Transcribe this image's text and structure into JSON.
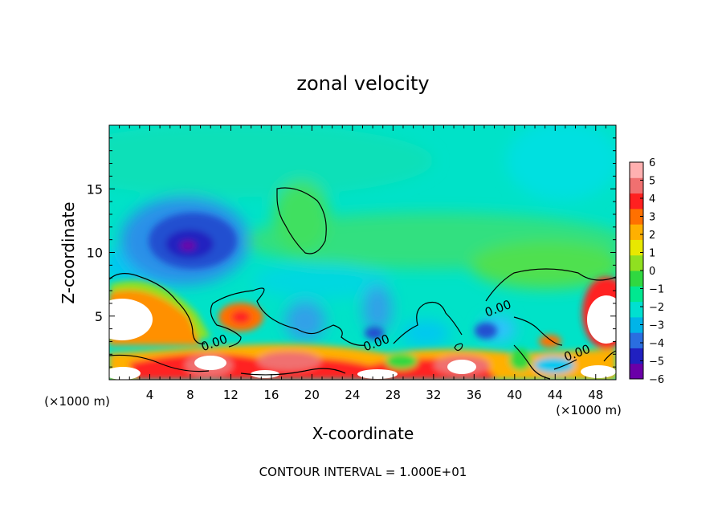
{
  "chart_data": {
    "type": "heatmap",
    "title": "zonal velocity",
    "xlabel": "X-coordinate",
    "ylabel": "Z-coordinate",
    "x_unit": "(×1000 m)",
    "xlim": [
      0,
      50
    ],
    "ylim": [
      0,
      20
    ],
    "x_ticks": [
      4,
      8,
      12,
      16,
      20,
      24,
      28,
      32,
      36,
      40,
      44,
      48
    ],
    "y_ticks": [
      5,
      10,
      15
    ],
    "colorbar": {
      "min": -6,
      "max": 6,
      "ticks": [
        6,
        5,
        4,
        3,
        2,
        1,
        0,
        -1,
        -2,
        -3,
        -4,
        -5,
        -6
      ],
      "tick_labels": [
        "6",
        "5",
        "4",
        "3",
        "2",
        "1",
        "0",
        "−1",
        "−2",
        "−3",
        "−4",
        "−5",
        "−6"
      ],
      "colors": [
        "#6a00a8",
        "#2020c0",
        "#2a6ee0",
        "#00b4e8",
        "#00e0d0",
        "#00e890",
        "#30d840",
        "#90e020",
        "#e8e800",
        "#ffb000",
        "#ff7000",
        "#ff2020",
        "#f07070",
        "#ffb0b0"
      ]
    },
    "contour_labels": [
      {
        "text": "0.00",
        "x": 10.5,
        "z": 2.6
      },
      {
        "text": "0.00",
        "x": 26.5,
        "z": 2.6
      },
      {
        "text": "0.00",
        "x": 38.5,
        "z": 5.3
      },
      {
        "text": "0.00",
        "x": 46.3,
        "z": 1.8
      }
    ],
    "features": [
      {
        "kind": "min",
        "x": 7.8,
        "z": 10.5,
        "value": -5.0
      },
      {
        "kind": "max",
        "x": 1.5,
        "z": 4.5,
        "value": 6.5
      },
      {
        "kind": "max",
        "x": 48.8,
        "z": 5.0,
        "value": 6.5
      },
      {
        "kind": "max",
        "x": 9.0,
        "z": 1.2,
        "value": 6.0
      },
      {
        "kind": "min",
        "x": 26.0,
        "z": 4.5,
        "value": -3.0
      },
      {
        "kind": "min",
        "x": 37.0,
        "z": 3.5,
        "value": -4.0
      }
    ],
    "footer": "CONTOUR INTERVAL = 1.000E+01"
  }
}
